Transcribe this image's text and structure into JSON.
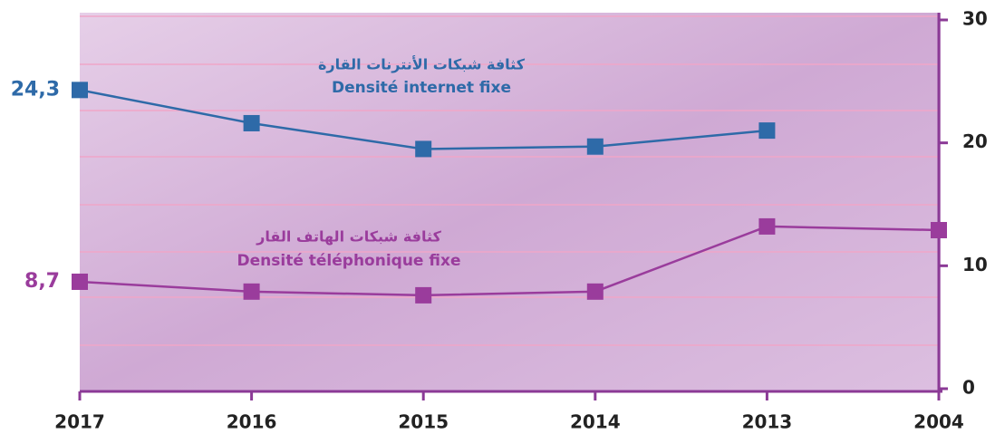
{
  "chart_data": {
    "type": "line",
    "categories": [
      "2017",
      "2016",
      "2015",
      "2014",
      "2013",
      "2004"
    ],
    "series": [
      {
        "name": "Densité internet fixe",
        "name_ar": "كثافة شبكات الأنترنات القارة",
        "color": "#2e6aa8",
        "values": [
          24.3,
          21.6,
          19.5,
          19.7,
          21.0,
          null
        ],
        "value_labels": [
          "24,3",
          null,
          null,
          null,
          null,
          null
        ]
      },
      {
        "name": "Densité téléphonique fixe",
        "name_ar": "كثافة شبكات الهاتف القار",
        "color": "#9a3c9c",
        "values": [
          8.7,
          7.9,
          7.6,
          7.9,
          13.2,
          12.9
        ],
        "value_labels": [
          "8,7",
          null,
          null,
          null,
          null,
          null
        ]
      }
    ],
    "ylim": [
      0,
      30
    ],
    "yticks": [
      0,
      10,
      20,
      30
    ],
    "axis_color": "#8b3a96"
  }
}
